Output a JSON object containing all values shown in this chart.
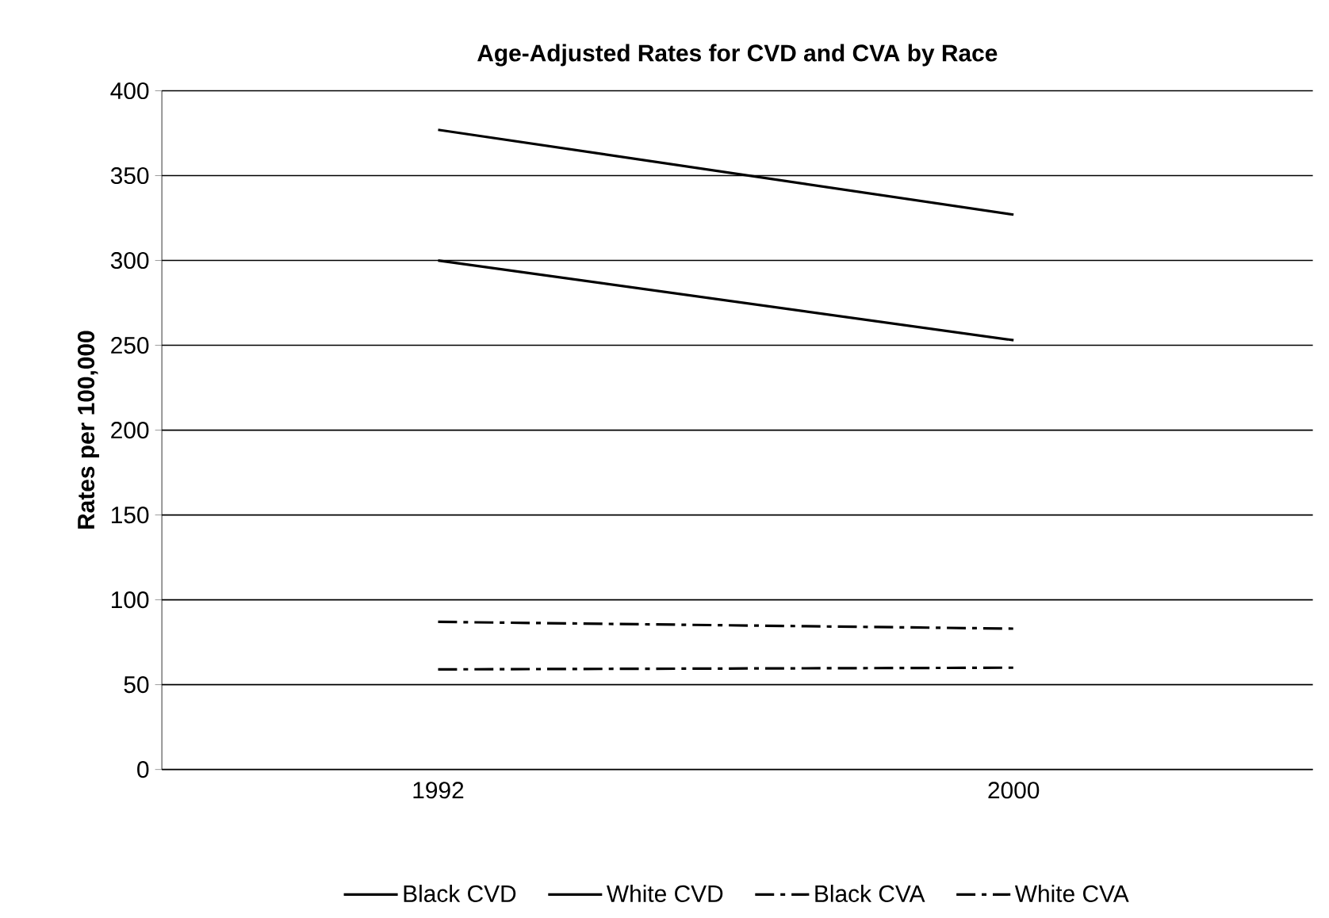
{
  "chart_data": {
    "type": "line",
    "title": "Age-Adjusted Rates for CVD and CVA by Race",
    "ylabel": "Rates per 100,000",
    "categories": [
      "1992",
      "2000"
    ],
    "series": [
      {
        "name": "Black CVD",
        "color": "#000000",
        "values": [
          377,
          327
        ],
        "line_style": "solid"
      },
      {
        "name": "White CVD",
        "color": "#000000",
        "values": [
          300,
          253
        ],
        "line_style": "solid"
      },
      {
        "name": "Black CVA",
        "color": "#000000",
        "values": [
          87,
          83
        ],
        "line_style": "dashed"
      },
      {
        "name": "White CVA",
        "color": "#000000",
        "values": [
          59,
          60
        ],
        "line_style": "dashed"
      }
    ],
    "ylim": [
      0,
      400
    ],
    "yticks": [
      0,
      50,
      100,
      150,
      200,
      250,
      300,
      350,
      400
    ],
    "grid": "y",
    "legend": "bottom",
    "marker": "none"
  }
}
